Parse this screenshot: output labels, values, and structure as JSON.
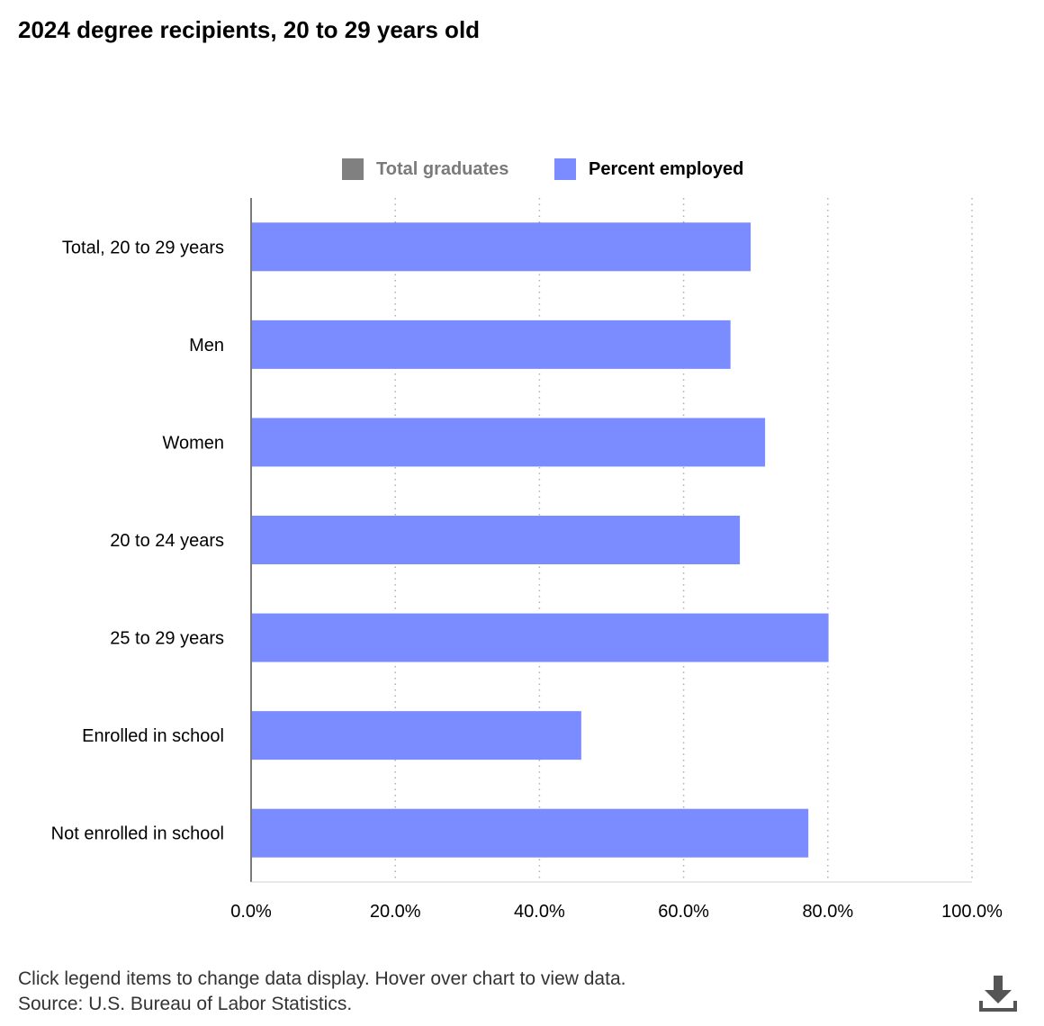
{
  "title": "2024 degree recipients, 20 to 29 years old",
  "legend": [
    {
      "label": "Total graduates",
      "color": "#808080",
      "active": false
    },
    {
      "label": "Percent employed",
      "color": "#7a8cff",
      "active": true
    }
  ],
  "chart_data": {
    "type": "bar",
    "orientation": "horizontal",
    "title": "2024 degree recipients, 20 to 29 years old",
    "categories": [
      "Total, 20 to 29 years",
      "Men",
      "Women",
      "20 to 24 years",
      "25 to 29 years",
      "Enrolled in school",
      "Not enrolled in school"
    ],
    "series": [
      {
        "name": "Percent employed",
        "color": "#7a8cff",
        "values": [
          69.3,
          66.5,
          71.3,
          67.8,
          80.1,
          45.8,
          77.3
        ]
      }
    ],
    "xlim": [
      0,
      100
    ],
    "xticks": [
      "0.0%",
      "20.0%",
      "40.0%",
      "60.0%",
      "80.0%",
      "100.0%"
    ],
    "xtick_values": [
      0,
      20,
      40,
      60,
      80,
      100
    ],
    "grid": "vertical dotted",
    "legend_position": "top-center"
  },
  "footer": {
    "line1": "Click legend items to change data display. Hover over chart to view data.",
    "line2": "Source: U.S. Bureau of Labor Statistics."
  },
  "icons": {
    "download": "download-icon"
  }
}
